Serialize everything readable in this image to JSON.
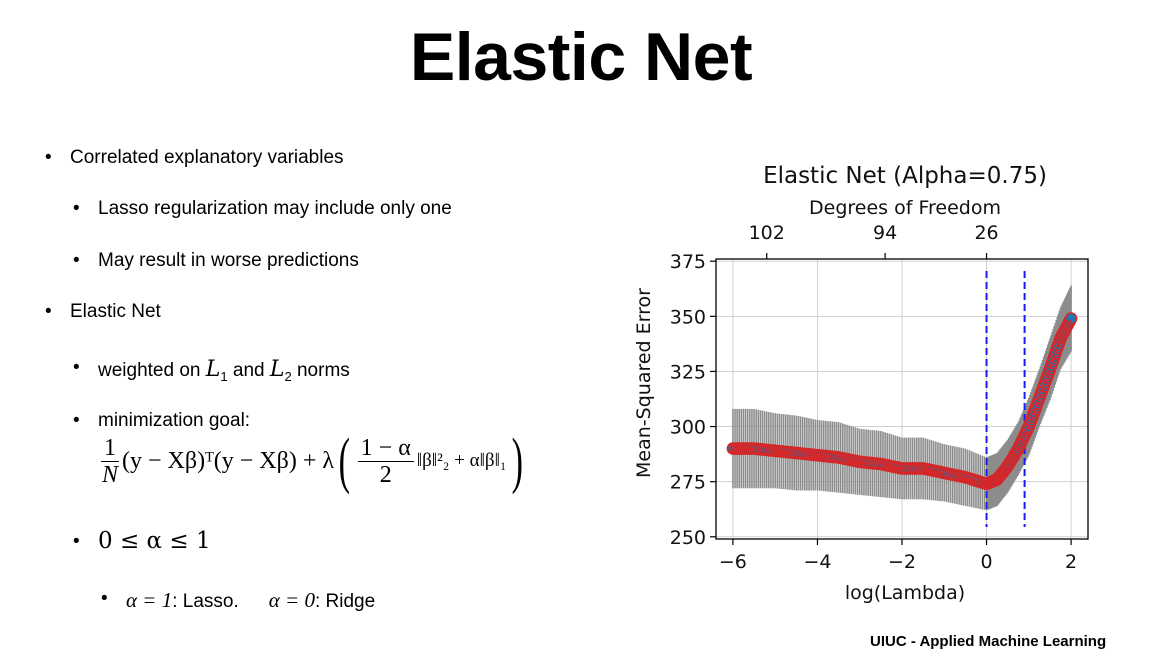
{
  "slide": {
    "title": "Elastic Net",
    "bullets": {
      "b1": "Correlated explanatory variables",
      "b1a": "Lasso regularization may include only one",
      "b1b": "May result in worse predictions",
      "b2": "Elastic Net",
      "b2a_pre": "weighted on ",
      "b2a_l1": "L",
      "b2a_l1_sub": "1",
      "b2a_mid": " and ",
      "b2a_l2": "L",
      "b2a_l2_sub": "2",
      "b2a_post": " norms",
      "b2b": "minimization goal:",
      "b2c": "0 ≤ α ≤ 1",
      "b2c_a1": "α = 1",
      "b2c_a1_text": ": Lasso.",
      "b2c_a0": "α = 0",
      "b2c_a0_text": ": Ridge"
    },
    "formula": {
      "f1_num": "1",
      "f1_den": "N",
      "term1": "(y − Xβ)ᵀ(y − Xβ) + λ",
      "f2_num": "1 − α",
      "f2_den": "2",
      "term2": "‖β‖²₂ + α‖β‖₁"
    },
    "footer": "UIUC - Applied Machine Learning"
  },
  "chart_data": {
    "type": "line",
    "title": "Elastic Net (Alpha=0.75)",
    "top_axis_label": "Degrees of Freedom",
    "top_ticks": [
      {
        "x": -5.2,
        "label": "102"
      },
      {
        "x": -2.4,
        "label": "94"
      },
      {
        "x": 0.0,
        "label": "26"
      }
    ],
    "xlabel": "log(Lambda)",
    "ylabel": "Mean-Squared Error",
    "xlim": [
      -6.4,
      2.4
    ],
    "ylim": [
      249,
      376
    ],
    "x_ticks": [
      -6,
      -4,
      -2,
      0,
      2
    ],
    "x_tick_labels": [
      "−6",
      "−4",
      "−2",
      "0",
      "2"
    ],
    "y_ticks": [
      250,
      275,
      300,
      325,
      350,
      375
    ],
    "grid": true,
    "vlines": [
      0.0,
      0.9
    ],
    "colors": {
      "line": "#d62728",
      "marker_edge": "#d62728",
      "marker_face": "#1f77b4",
      "errorbar": "#8c8c8c",
      "vline": "#1a1aff"
    },
    "series": [
      {
        "x": [
          -6.0,
          -5.5,
          -5.0,
          -4.5,
          -4.0,
          -3.5,
          -3.0,
          -2.5,
          -2.0,
          -1.5,
          -1.0,
          -0.5,
          0.0,
          0.25,
          0.5,
          0.75,
          1.0,
          1.25,
          1.5,
          1.75,
          2.0
        ],
        "y": [
          290,
          290,
          289,
          288,
          287,
          286,
          284,
          283,
          281,
          281,
          279,
          277,
          274,
          276,
          282,
          290,
          300,
          313,
          326,
          340,
          349
        ],
        "err": [
          18,
          18,
          17,
          17,
          16,
          16,
          15,
          15,
          14,
          14,
          13,
          13,
          12,
          12,
          12,
          12,
          13,
          13,
          14,
          14,
          15
        ]
      }
    ]
  }
}
